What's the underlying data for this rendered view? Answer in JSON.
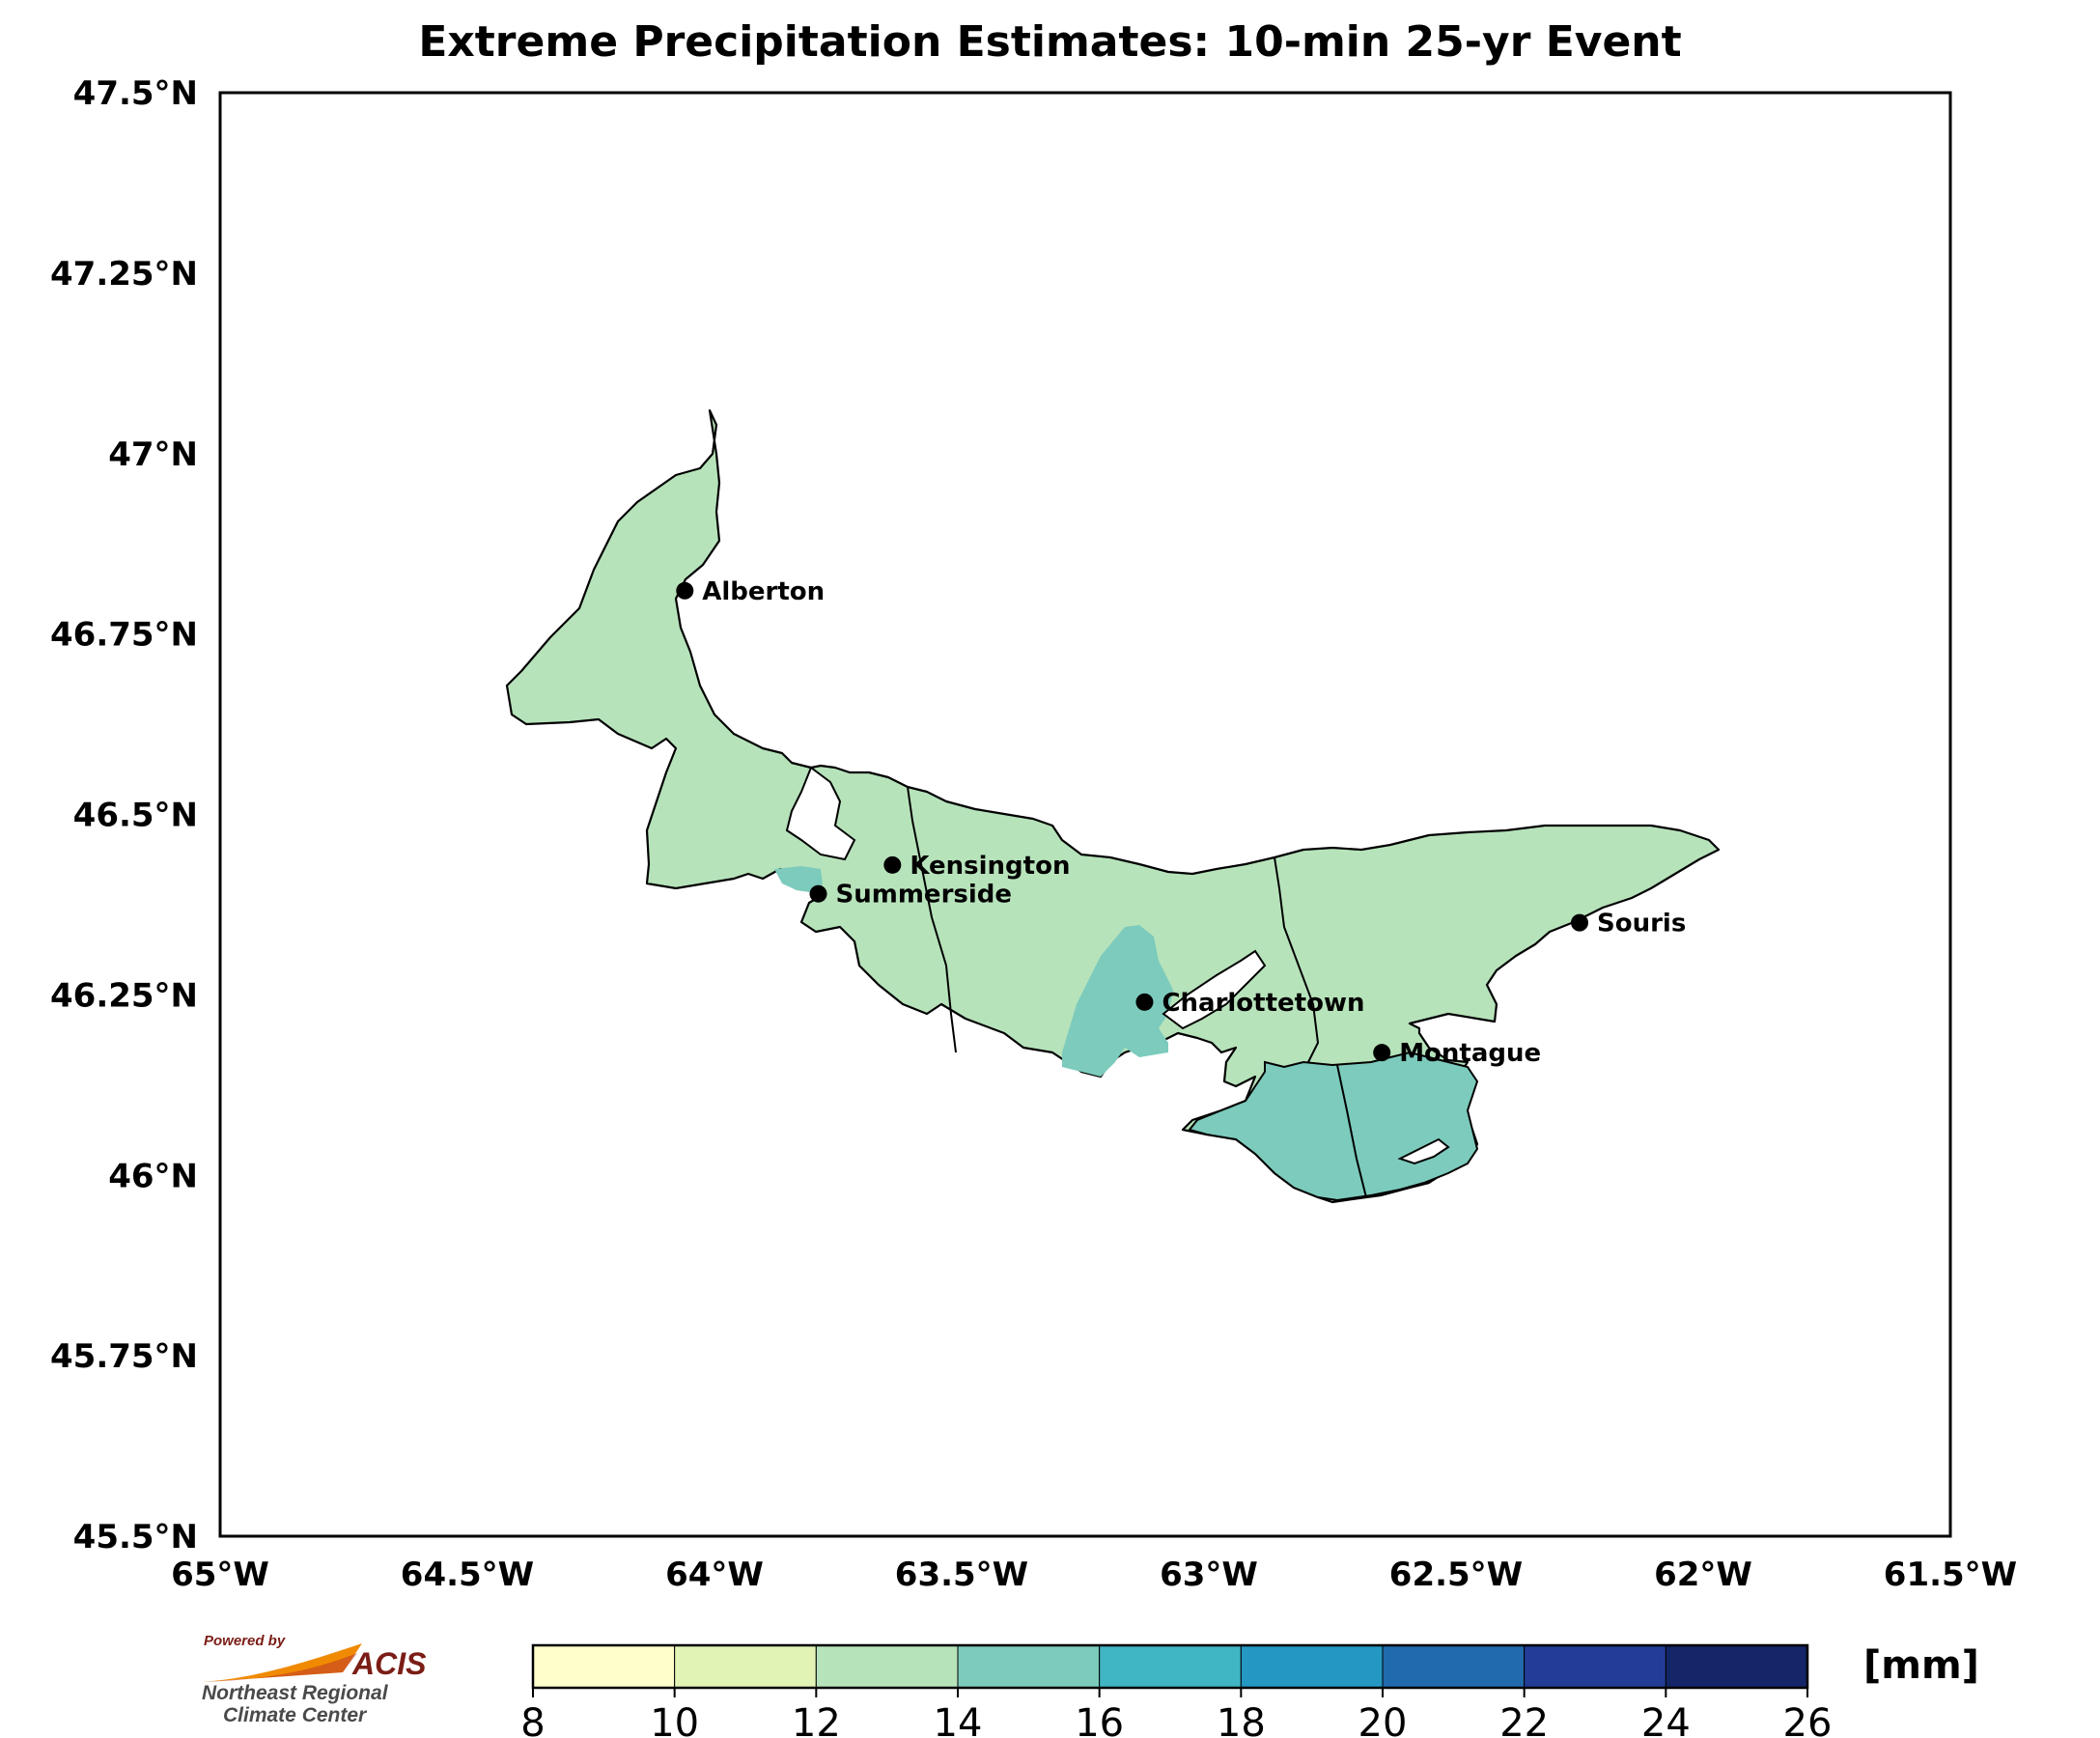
{
  "title": "Extreme Precipitation Estimates: 10-min 25-yr Event",
  "lat_ticks": [
    "47.5°N",
    "47.25°N",
    "47°N",
    "46.75°N",
    "46.5°N",
    "46.25°N",
    "46°N",
    "45.75°N",
    "45.5°N"
  ],
  "lon_ticks": [
    "65°W",
    "64.5°W",
    "64°W",
    "63.5°W",
    "63°W",
    "62.5°W",
    "62°W",
    "61.5°W"
  ],
  "cities": [
    {
      "name": "Alberton",
      "lon": -64.06,
      "lat": 46.81
    },
    {
      "name": "Kensington",
      "lon": -63.64,
      "lat": 46.43
    },
    {
      "name": "Summerside",
      "lon": -63.79,
      "lat": 46.39
    },
    {
      "name": "Charlottetown",
      "lon": -63.13,
      "lat": 46.24
    },
    {
      "name": "Montague",
      "lon": -62.65,
      "lat": 46.17
    },
    {
      "name": "Souris",
      "lon": -62.25,
      "lat": 46.35
    }
  ],
  "colorbar": {
    "ticks": [
      "8",
      "10",
      "12",
      "14",
      "16",
      "18",
      "20",
      "22",
      "24",
      "26"
    ],
    "colors": [
      "#ffffcc",
      "#e1f4b5",
      "#b7e3bb",
      "#7ccbbc",
      "#40b5c4",
      "#2498c2",
      "#216aae",
      "#233d97",
      "#142568"
    ],
    "unit": "[mm]"
  },
  "data_classes": {
    "main": "12–14",
    "southeast": "14–16"
  },
  "logo": {
    "powered_by": "Powered by",
    "name": "ACIS",
    "org_line1": "Northeast Regional",
    "org_line2": "Climate Center"
  }
}
